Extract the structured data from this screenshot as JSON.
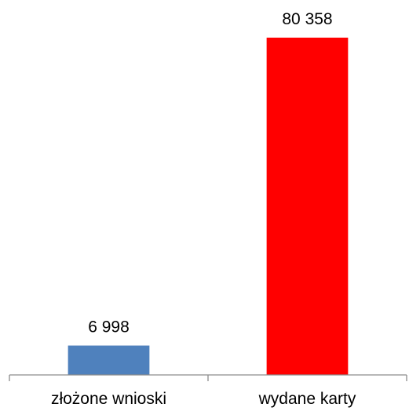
{
  "chart_data": {
    "type": "bar",
    "categories": [
      "złożone wnioski",
      "wydane karty"
    ],
    "values": [
      6998,
      80358
    ],
    "value_labels": [
      "6 998",
      "80 358"
    ],
    "colors": [
      "#4f81bd",
      "#ff0000"
    ],
    "title": "",
    "xlabel": "",
    "ylabel": "",
    "ylim": [
      0,
      80358
    ],
    "y_axis_visible": false,
    "grid": false,
    "legend": "none"
  }
}
